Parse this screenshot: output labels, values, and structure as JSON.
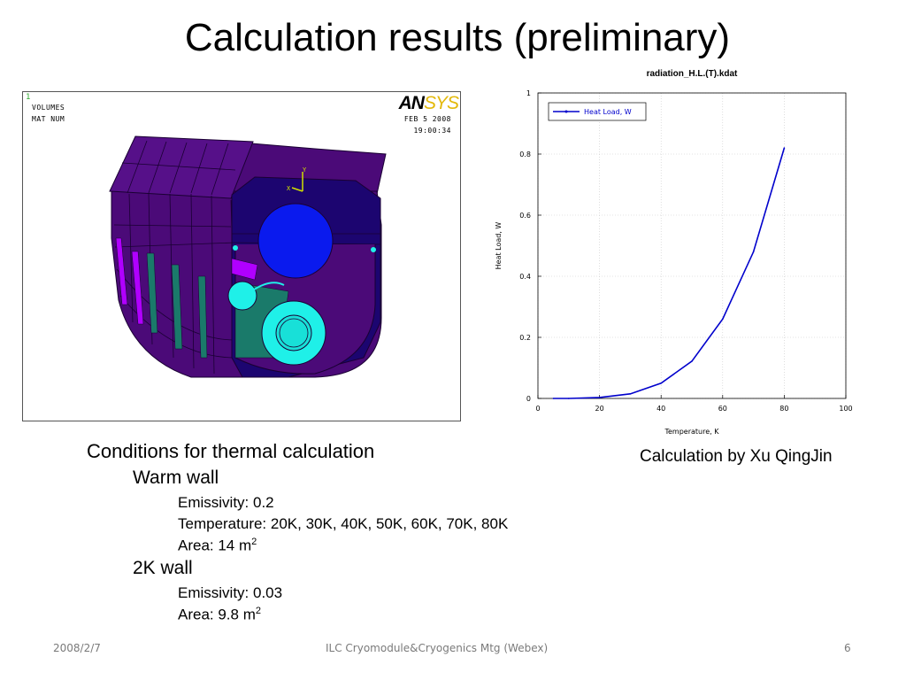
{
  "title": "Calculation results (preliminary)",
  "ansys": {
    "corner_num": "1",
    "volumes": "VOLUMES",
    "matnum": "MAT  NUM",
    "date": "FEB  5 2008",
    "time": "19:00:34",
    "logo_a": "AN",
    "logo_b": "SYS",
    "axis_y": "Y",
    "axis_x": "X"
  },
  "chart_data": {
    "type": "line",
    "title": "radiation_H.L.(T).kdat",
    "xlabel": "Temperature, K",
    "ylabel": "Heat Load, W",
    "xlim": [
      0,
      100
    ],
    "ylim": [
      0,
      1
    ],
    "xticks": [
      0,
      20,
      40,
      60,
      80,
      100
    ],
    "yticks": [
      0,
      0.2,
      0.4,
      0.6,
      0.8,
      1
    ],
    "yticklabels": [
      "0",
      "0.2",
      "0.4",
      "0.6",
      "0.8",
      "1"
    ],
    "grid": true,
    "legend_position": "top-left",
    "series": [
      {
        "name": "Heat Load, W",
        "color": "#0000cc",
        "x": [
          5,
          10,
          20,
          30,
          40,
          50,
          60,
          70,
          80
        ],
        "y": [
          0,
          0,
          0.003,
          0.015,
          0.05,
          0.122,
          0.26,
          0.48,
          0.82
        ]
      }
    ]
  },
  "credit": "Calculation by Xu QingJin",
  "conditions": {
    "heading": "Conditions for thermal calculation",
    "warm_wall": {
      "label": "Warm wall",
      "emissivity": "Emissivity: 0.2",
      "temperature": "Temperature: 20K, 30K, 40K, 50K, 60K, 70K, 80K",
      "area": "Area: 14 m",
      "area_sup": "2"
    },
    "cold_wall": {
      "label": "2K wall",
      "emissivity": "Emissivity: 0.03",
      "area": "Area: 9.8 m",
      "area_sup": "2"
    }
  },
  "footer": {
    "date": "2008/2/7",
    "meeting": "ILC Cryomodule&Cryogenics Mtg (Webex)",
    "page": "6"
  },
  "colors": {
    "shell": "#4b0a78",
    "shell_edge": "#1a0033",
    "magenta": "#b000ff",
    "teal": "#1a7a6a",
    "blue_pipe": "#0a1aee",
    "cyan_pipe": "#1ff0e8"
  }
}
